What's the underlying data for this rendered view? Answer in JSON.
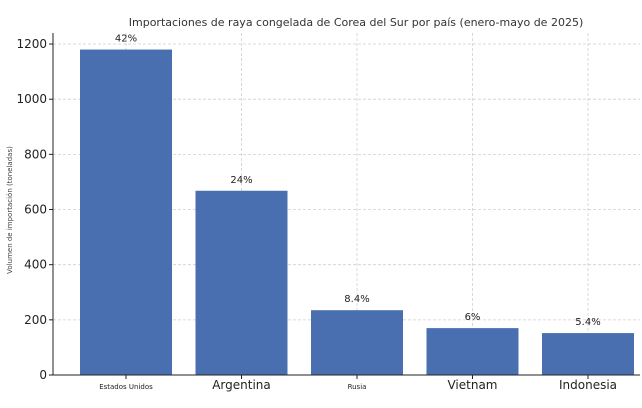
{
  "chart_data": {
    "type": "bar",
    "title": "Importaciones de raya congelada de Corea del Sur por país (enero-mayo de 2025)",
    "ylabel": "Volumen de importación (toneladas)",
    "xlabel": "",
    "categories": [
      "Estados Unidos",
      "Argentina",
      "Rusia",
      "Vietnam",
      "Indonesia"
    ],
    "values": [
      1180,
      668,
      235,
      170,
      152
    ],
    "data_labels": [
      "42%",
      "24%",
      "8.4%",
      "6%",
      "5.4%"
    ],
    "yticks": [
      0,
      200,
      400,
      600,
      800,
      1000,
      1200
    ],
    "ylim": [
      0,
      1240
    ],
    "grid": true,
    "bar_color": "#4a6fb0"
  }
}
